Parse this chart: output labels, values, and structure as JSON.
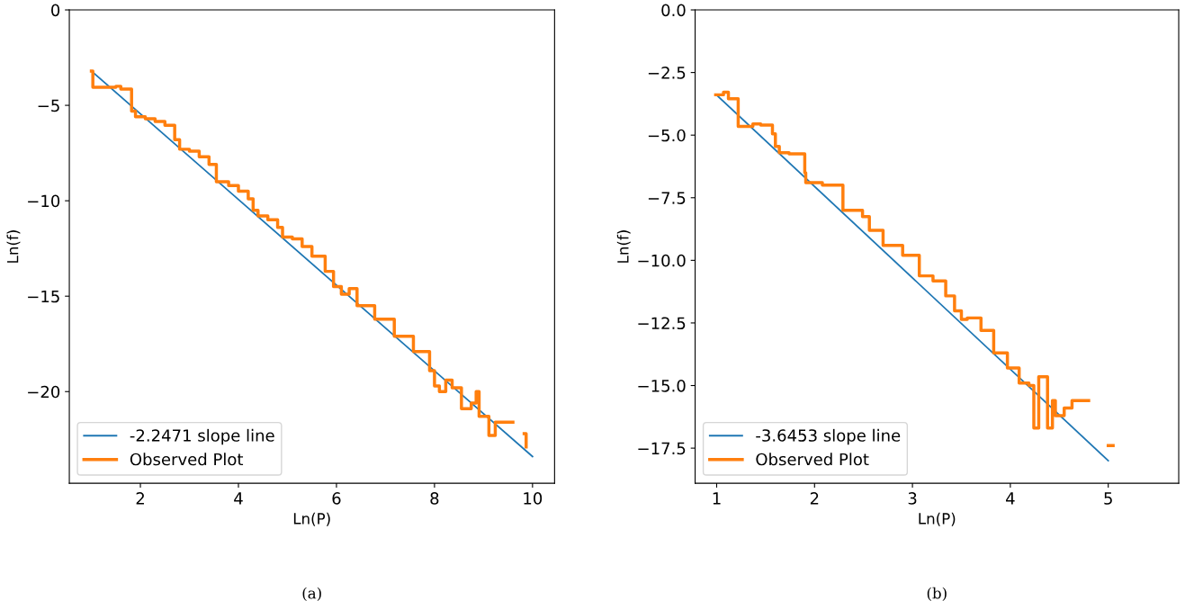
{
  "chart_data": [
    {
      "type": "line",
      "xlabel": "Ln(P)",
      "ylabel": "Ln(f)",
      "annotations": [
        "(a)"
      ],
      "legend": "lower left",
      "grid": false,
      "xlim": [
        0.55,
        10.45
      ],
      "ylim": [
        -24.8,
        0
      ],
      "xticks": [
        2,
        4,
        6,
        8,
        10
      ],
      "yticks": [
        {
          "value": -20,
          "label": "−20"
        },
        {
          "value": -15,
          "label": "−15"
        },
        {
          "value": -10,
          "label": "−10"
        },
        {
          "value": -5,
          "label": "−5"
        },
        {
          "value": 0,
          "label": "0"
        }
      ],
      "series": [
        {
          "name": "-2.2471 slope line",
          "color": "#1f77b4",
          "x": [
            1,
            10
          ],
          "values": [
            -3.2,
            -23.4
          ]
        },
        {
          "name": "Observed Plot",
          "type": "step",
          "color": "#ff7f0e",
          "x": [
            1.0,
            1.03,
            1.5,
            1.6,
            1.82,
            1.9,
            2.1,
            2.3,
            2.5,
            2.7,
            2.8,
            3.0,
            3.2,
            3.4,
            3.55,
            3.8,
            4.0,
            4.2,
            4.3,
            4.4,
            4.6,
            4.8,
            4.9,
            5.1,
            5.3,
            5.5,
            5.77,
            5.94,
            6.1,
            6.26,
            6.42,
            6.78,
            7.18,
            7.57,
            7.9,
            8.0,
            8.1,
            8.23,
            8.36,
            8.55,
            8.75,
            8.85,
            8.91,
            9.11,
            9.24,
            9.33,
            9.6,
            9.83,
            9.87
          ],
          "values": [
            -3.2,
            -4.05,
            -4.0,
            -4.15,
            -5.3,
            -5.6,
            -5.7,
            -5.85,
            -6.05,
            -6.8,
            -7.3,
            -7.4,
            -7.7,
            -8.1,
            -9.0,
            -9.2,
            -9.5,
            -9.9,
            -10.5,
            -10.8,
            -11.0,
            -11.4,
            -11.9,
            -12.0,
            -12.4,
            -12.9,
            -13.7,
            -14.5,
            -14.9,
            -14.6,
            -15.5,
            -16.2,
            -17.1,
            -17.9,
            -18.9,
            -19.7,
            -20.0,
            -19.4,
            -19.8,
            -20.9,
            -20.6,
            -20.0,
            -21.3,
            -22.3,
            -21.6,
            -21.6,
            null,
            -22.2,
            -22.9
          ]
        }
      ]
    },
    {
      "type": "line",
      "xlabel": "Ln(P)",
      "ylabel": "Ln(f)",
      "annotations": [
        "(b)"
      ],
      "legend": "lower left",
      "grid": false,
      "xlim": [
        0.78,
        5.72
      ],
      "ylim": [
        -18.9,
        0
      ],
      "xticks": [
        1,
        2,
        3,
        4,
        5
      ],
      "yticks": [
        {
          "value": -17.5,
          "label": "−17.5"
        },
        {
          "value": -15,
          "label": "−15.0"
        },
        {
          "value": -12.5,
          "label": "−12.5"
        },
        {
          "value": -10,
          "label": "−10.0"
        },
        {
          "value": -7.5,
          "label": "−7.5"
        },
        {
          "value": -5,
          "label": "−5.0"
        },
        {
          "value": -2.5,
          "label": "−2.5"
        },
        {
          "value": 0,
          "label": "0.0"
        }
      ],
      "series": [
        {
          "name": "-3.6453 slope line",
          "color": "#1f77b4",
          "x": [
            1,
            5
          ],
          "values": [
            -3.4,
            -18.0
          ]
        },
        {
          "name": "Observed Plot",
          "type": "step",
          "color": "#ff7f0e",
          "x": [
            0.99,
            1.07,
            1.12,
            1.22,
            1.37,
            1.45,
            1.57,
            1.6,
            1.64,
            1.74,
            1.9,
            1.91,
            2.08,
            2.29,
            2.49,
            2.56,
            2.7,
            2.9,
            3.07,
            3.21,
            3.34,
            3.43,
            3.5,
            3.56,
            3.7,
            3.83,
            3.92,
            3.97,
            4.09,
            4.19,
            4.24,
            4.29,
            4.38,
            4.43,
            4.46,
            4.55,
            4.63,
            4.8,
            5.0,
            5.05
          ],
          "values": [
            -3.39,
            -3.29,
            -3.55,
            -4.65,
            -4.55,
            -4.6,
            -4.95,
            -5.45,
            -5.7,
            -5.75,
            -6.5,
            -6.9,
            -7.0,
            -8.0,
            -8.25,
            -8.8,
            -9.4,
            -9.8,
            -10.62,
            -10.82,
            -11.42,
            -12.02,
            -12.36,
            -12.3,
            -12.8,
            -13.7,
            -13.7,
            -14.3,
            -14.9,
            -15.0,
            -16.7,
            -14.65,
            -16.7,
            -15.6,
            -16.2,
            -15.9,
            -15.6,
            null,
            -17.4,
            -17.4
          ]
        }
      ]
    }
  ]
}
